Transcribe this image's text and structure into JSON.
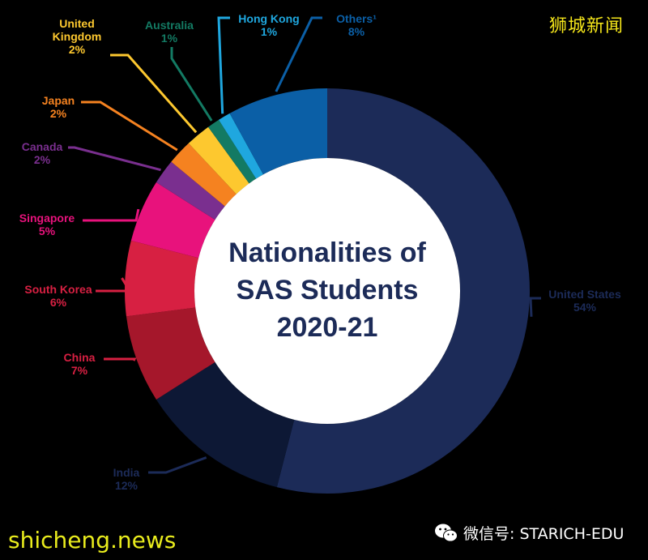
{
  "watermarks": {
    "brand_cn": "狮城新闻",
    "site": "shicheng.news",
    "wechat": "微信号: STARICH-EDU"
  },
  "chart_data": {
    "type": "pie",
    "style": "donut",
    "title_lines": [
      "Nationalities of",
      "SAS Students",
      "2020-21"
    ],
    "slices": [
      {
        "name": "United States",
        "label": "United States",
        "value": 54,
        "value_label": "54%",
        "color": "#1c2b58"
      },
      {
        "name": "India",
        "label": "India",
        "value": 12,
        "value_label": "12%",
        "color": "#0d1835"
      },
      {
        "name": "China",
        "label": "China",
        "value": 7,
        "value_label": "7%",
        "color": "#a5172b"
      },
      {
        "name": "South Korea",
        "label": "South Korea",
        "value": 6,
        "value_label": "6%",
        "color": "#d72042"
      },
      {
        "name": "Singapore",
        "label": "Singapore",
        "value": 5,
        "value_label": "5%",
        "color": "#e8127c"
      },
      {
        "name": "Canada",
        "label": "Canada",
        "value": 2,
        "value_label": "2%",
        "color": "#7a2f8f"
      },
      {
        "name": "Japan",
        "label": "Japan",
        "value": 2,
        "value_label": "2%",
        "color": "#f58220"
      },
      {
        "name": "United Kingdom",
        "label": "United\nKingdom",
        "value": 2,
        "value_label": "2%",
        "color": "#fdc82f"
      },
      {
        "name": "Australia",
        "label": "Australia",
        "value": 1,
        "value_label": "1%",
        "color": "#137a63"
      },
      {
        "name": "Hong Kong",
        "label": "Hong Kong",
        "value": 1,
        "value_label": "1%",
        "color": "#1fa7df"
      },
      {
        "name": "Others",
        "label": "Others¹",
        "value": 8,
        "value_label": "8%",
        "color": "#0b5fa6"
      }
    ],
    "label_colors": {
      "United States": "#1c2b58",
      "India": "#1c2b58",
      "China": "#d72042",
      "South Korea": "#d72042",
      "Singapore": "#e8127c",
      "Canada": "#7a2f8f",
      "Japan": "#f58220",
      "United Kingdom": "#fdc82f",
      "Australia": "#137a63",
      "Hong Kong": "#1fa7df",
      "Others": "#0b5fa6"
    }
  }
}
